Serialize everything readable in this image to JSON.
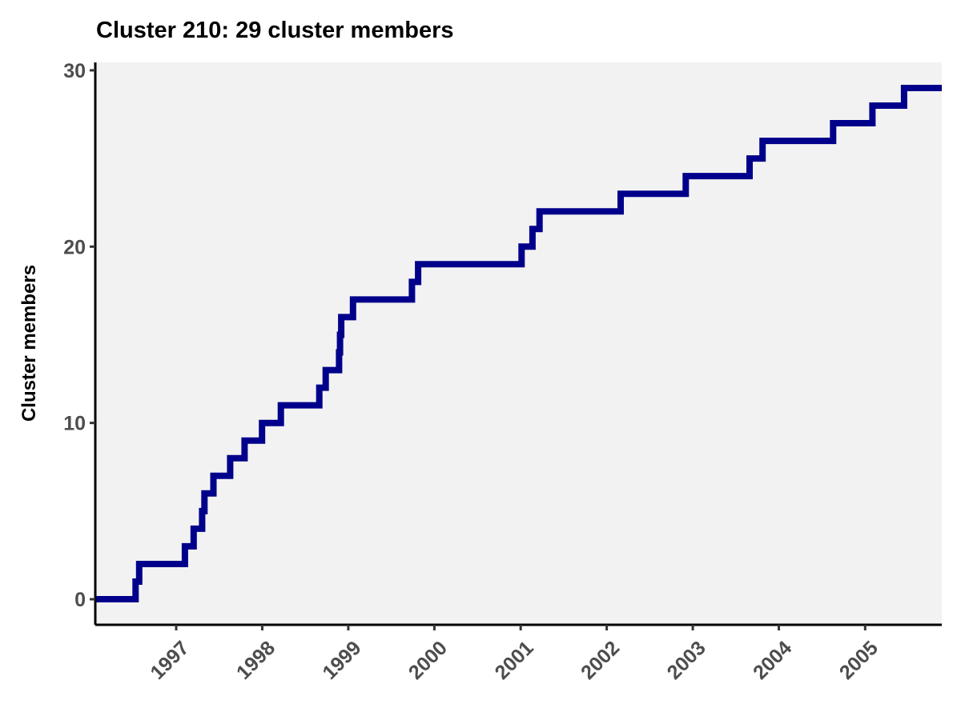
{
  "chart_data": {
    "type": "line",
    "step": true,
    "title": "Cluster 210: 29 cluster members",
    "xlabel": "",
    "ylabel": "Cluster members",
    "x_axis_type": "date",
    "xlim": [
      "1996-01-24",
      "2005-11-22"
    ],
    "ylim": [
      -1.45,
      30.45
    ],
    "x_ticks": [
      "1997",
      "1998",
      "1999",
      "2000",
      "2001",
      "2002",
      "2003",
      "2004",
      "2005"
    ],
    "y_ticks": [
      0,
      10,
      20,
      30
    ],
    "grid": false,
    "panel_background": "#f2f2f2",
    "series": [
      {
        "color": "#00008b",
        "points": [
          {
            "x": "1996-01-24",
            "y": 0
          },
          {
            "x": "1996-07-13",
            "y": 1
          },
          {
            "x": "1996-07-28",
            "y": 2
          },
          {
            "x": "1997-02-07",
            "y": 3
          },
          {
            "x": "1997-03-16",
            "y": 4
          },
          {
            "x": "1997-04-21",
            "y": 5
          },
          {
            "x": "1997-05-01",
            "y": 6
          },
          {
            "x": "1997-06-08",
            "y": 7
          },
          {
            "x": "1997-08-18",
            "y": 8
          },
          {
            "x": "1997-10-18",
            "y": 9
          },
          {
            "x": "1997-12-31",
            "y": 10
          },
          {
            "x": "1998-03-21",
            "y": 11
          },
          {
            "x": "1998-08-31",
            "y": 12
          },
          {
            "x": "1998-09-27",
            "y": 13
          },
          {
            "x": "1998-11-23",
            "y": 14
          },
          {
            "x": "1998-11-27",
            "y": 15
          },
          {
            "x": "1998-12-02",
            "y": 16
          },
          {
            "x": "1999-01-21",
            "y": 17
          },
          {
            "x": "1999-09-28",
            "y": 18
          },
          {
            "x": "1999-10-24",
            "y": 19
          },
          {
            "x": "2001-01-05",
            "y": 20
          },
          {
            "x": "2001-02-20",
            "y": 21
          },
          {
            "x": "2001-03-22",
            "y": 22
          },
          {
            "x": "2002-03-01",
            "y": 23
          },
          {
            "x": "2002-12-02",
            "y": 24
          },
          {
            "x": "2003-08-30",
            "y": 25
          },
          {
            "x": "2003-10-24",
            "y": 26
          },
          {
            "x": "2004-08-18",
            "y": 27
          },
          {
            "x": "2005-02-01",
            "y": 28
          },
          {
            "x": "2005-06-15",
            "y": 29
          },
          {
            "x": "2005-11-22",
            "y": 29
          }
        ]
      }
    ]
  }
}
